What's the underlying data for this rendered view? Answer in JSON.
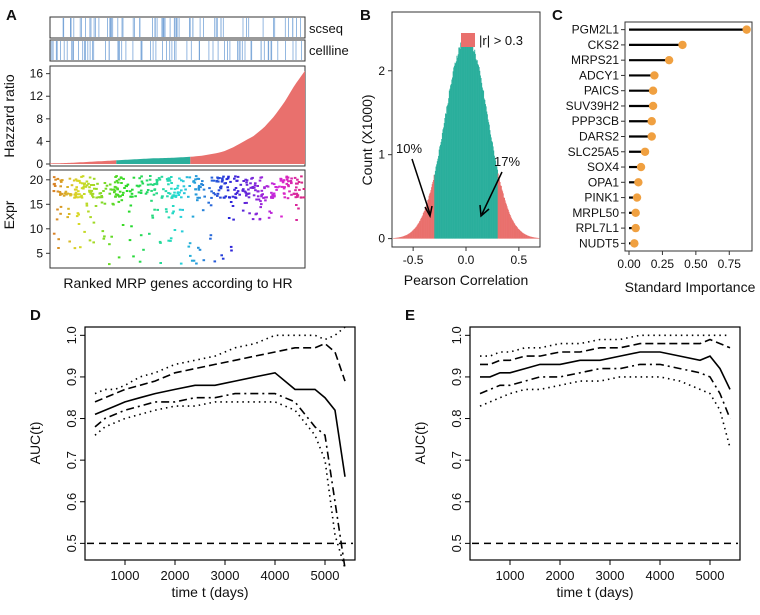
{
  "chart_data": [
    {
      "panel": "A",
      "type": "composite",
      "tracks": [
        "scseq",
        "cellline"
      ],
      "ylabel_top": "Hazzard ratio",
      "ylabel_bottom": "Expr",
      "xlabel": "Ranked MRP genes according to HR",
      "hr_ylim": [
        0,
        17
      ],
      "hr_yticks": [
        "0",
        "4",
        "8",
        "12",
        "16"
      ],
      "expr_ylim": [
        2,
        22
      ],
      "expr_yticks": [
        "5",
        "10",
        "15",
        "20"
      ],
      "n_genes": 150,
      "segment_colors": [
        "#e9706d",
        "#2aaf9c",
        "#e9706d"
      ],
      "hr_segment_breaks": [
        0.26,
        0.55
      ],
      "hr_values": [
        0.1,
        0.15,
        0.2,
        0.3,
        0.4,
        0.5,
        0.6,
        0.7,
        0.8,
        0.9,
        1.0,
        1.05,
        1.1,
        1.2,
        1.3,
        1.5,
        1.8,
        2.2,
        3,
        4,
        5,
        6.5,
        8.5,
        11,
        14,
        16.5
      ]
    },
    {
      "panel": "B",
      "type": "histogram",
      "xlabel": "Pearson Correlation",
      "ylabel": "Count (X1000)",
      "xticks": [
        "-0.5",
        "0.0",
        "0.5"
      ],
      "yticks": [
        "0",
        "1",
        "2"
      ],
      "xlim": [
        -0.7,
        0.7
      ],
      "ylim": [
        -0.1,
        2.7
      ],
      "legend_label": "|r| > 0.3",
      "threshold": 0.3,
      "annotations": [
        "10%",
        "17%"
      ],
      "inner_color": "#2aaf9c",
      "outer_color": "#e9706d"
    },
    {
      "panel": "C",
      "type": "lollipop",
      "xlabel": "Standard Importance",
      "xticks": [
        "0.00",
        "0.25",
        "0.50",
        "0.75"
      ],
      "xlim": [
        -0.03,
        0.92
      ],
      "point_color": "#f0a040",
      "genes": [
        "PGM2L1",
        "CKS2",
        "MRPS21",
        "ADCY1",
        "PAICS",
        "SUV39H2",
        "PPP3CB",
        "DARS2",
        "SLC25A5",
        "SOX4",
        "OPA1",
        "PINK1",
        "MRPL50",
        "RPL7L1",
        "NUDT5"
      ],
      "values": [
        0.88,
        0.4,
        0.3,
        0.19,
        0.18,
        0.18,
        0.17,
        0.17,
        0.12,
        0.09,
        0.07,
        0.06,
        0.05,
        0.05,
        0.04
      ]
    },
    {
      "panel": "D",
      "type": "line",
      "xlabel": "time t (days)",
      "ylabel": "AUC(t)",
      "xticks": [
        "1000",
        "2000",
        "3000",
        "4000",
        "5000"
      ],
      "yticks": [
        "0.5",
        "0.6",
        "0.7",
        "0.8",
        "0.9",
        "1.0"
      ],
      "xlim": [
        200,
        5600
      ],
      "ylim": [
        0.46,
        1.02
      ],
      "reference_line": 0.5,
      "series": [
        {
          "name": "upper_dotted",
          "x": [
            400,
            600,
            800,
            1000,
            1300,
            1600,
            2000,
            2400,
            2800,
            3200,
            3600,
            4000,
            4400,
            4800,
            5000,
            5200,
            5400
          ],
          "values": [
            0.86,
            0.87,
            0.87,
            0.88,
            0.9,
            0.91,
            0.93,
            0.94,
            0.95,
            0.97,
            0.98,
            1.0,
            1.0,
            1.0,
            0.99,
            1.0,
            1.02
          ]
        },
        {
          "name": "upper_dashed",
          "x": [
            400,
            600,
            800,
            1000,
            1300,
            1600,
            2000,
            2400,
            2800,
            3200,
            3600,
            4000,
            4400,
            4800,
            5000,
            5200,
            5400
          ],
          "values": [
            0.84,
            0.85,
            0.86,
            0.87,
            0.88,
            0.89,
            0.91,
            0.92,
            0.93,
            0.94,
            0.95,
            0.96,
            0.97,
            0.97,
            0.98,
            0.96,
            0.89
          ]
        },
        {
          "name": "estimate",
          "x": [
            400,
            600,
            800,
            1000,
            1300,
            1600,
            2000,
            2400,
            2800,
            3200,
            3600,
            4000,
            4400,
            4800,
            5000,
            5200,
            5400
          ],
          "values": [
            0.81,
            0.82,
            0.83,
            0.84,
            0.85,
            0.86,
            0.87,
            0.88,
            0.88,
            0.89,
            0.9,
            0.91,
            0.87,
            0.87,
            0.85,
            0.82,
            0.66
          ]
        },
        {
          "name": "lower_dashed",
          "x": [
            400,
            600,
            800,
            1000,
            1300,
            1600,
            2000,
            2400,
            2800,
            3200,
            3600,
            4000,
            4400,
            4800,
            5000,
            5200,
            5400
          ],
          "values": [
            0.78,
            0.8,
            0.81,
            0.82,
            0.83,
            0.84,
            0.84,
            0.85,
            0.85,
            0.86,
            0.86,
            0.86,
            0.84,
            0.78,
            0.76,
            0.6,
            0.44
          ]
        },
        {
          "name": "lower_dotted",
          "x": [
            400,
            600,
            800,
            1000,
            1300,
            1600,
            2000,
            2400,
            2800,
            3200,
            3600,
            4000,
            4400,
            4800,
            5000,
            5200,
            5400
          ],
          "values": [
            0.76,
            0.78,
            0.79,
            0.8,
            0.81,
            0.82,
            0.83,
            0.83,
            0.84,
            0.84,
            0.84,
            0.84,
            0.82,
            0.76,
            0.7,
            0.52,
            0.44
          ]
        }
      ]
    },
    {
      "panel": "E",
      "type": "line",
      "xlabel": "time t (days)",
      "ylabel": "AUC(t)",
      "xticks": [
        "1000",
        "2000",
        "3000",
        "4000",
        "5000"
      ],
      "yticks": [
        "0.5",
        "0.6",
        "0.7",
        "0.8",
        "0.9",
        "1.0"
      ],
      "xlim": [
        200,
        5600
      ],
      "ylim": [
        0.46,
        1.02
      ],
      "reference_line": 0.5,
      "series": [
        {
          "name": "upper_dotted",
          "x": [
            400,
            600,
            800,
            1000,
            1300,
            1600,
            2000,
            2400,
            2800,
            3200,
            3600,
            4000,
            4400,
            4800,
            5000,
            5200,
            5400
          ],
          "values": [
            0.95,
            0.95,
            0.96,
            0.96,
            0.97,
            0.97,
            0.98,
            0.98,
            0.99,
            0.99,
            1.0,
            1.0,
            1.0,
            1.0,
            1.0,
            1.0,
            1.0
          ]
        },
        {
          "name": "upper_dashed",
          "x": [
            400,
            600,
            800,
            1000,
            1300,
            1600,
            2000,
            2400,
            2800,
            3200,
            3600,
            4000,
            4400,
            4800,
            5000,
            5200,
            5400
          ],
          "values": [
            0.93,
            0.93,
            0.94,
            0.94,
            0.95,
            0.95,
            0.96,
            0.96,
            0.97,
            0.97,
            0.98,
            0.98,
            0.98,
            0.98,
            0.99,
            0.98,
            0.97
          ]
        },
        {
          "name": "estimate",
          "x": [
            400,
            600,
            800,
            1000,
            1300,
            1600,
            2000,
            2400,
            2800,
            3200,
            3600,
            4000,
            4400,
            4800,
            5000,
            5200,
            5400
          ],
          "values": [
            0.9,
            0.9,
            0.91,
            0.91,
            0.92,
            0.93,
            0.93,
            0.94,
            0.94,
            0.95,
            0.96,
            0.96,
            0.95,
            0.94,
            0.95,
            0.92,
            0.87
          ]
        },
        {
          "name": "lower_dashed",
          "x": [
            400,
            600,
            800,
            1000,
            1300,
            1600,
            2000,
            2400,
            2800,
            3200,
            3600,
            4000,
            4400,
            4800,
            5000,
            5200,
            5400
          ],
          "values": [
            0.86,
            0.87,
            0.88,
            0.88,
            0.89,
            0.9,
            0.9,
            0.91,
            0.92,
            0.92,
            0.93,
            0.93,
            0.92,
            0.91,
            0.9,
            0.86,
            0.8
          ]
        },
        {
          "name": "lower_dotted",
          "x": [
            400,
            600,
            800,
            1000,
            1300,
            1600,
            2000,
            2400,
            2800,
            3200,
            3600,
            4000,
            4400,
            4800,
            5000,
            5200,
            5400
          ],
          "values": [
            0.83,
            0.84,
            0.85,
            0.86,
            0.87,
            0.87,
            0.88,
            0.89,
            0.89,
            0.9,
            0.9,
            0.9,
            0.89,
            0.87,
            0.86,
            0.82,
            0.73
          ]
        }
      ]
    }
  ]
}
